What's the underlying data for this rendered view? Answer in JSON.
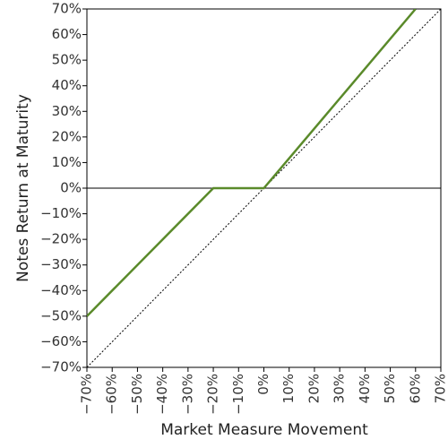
{
  "chart_data": {
    "type": "line",
    "xlabel": "Market Measure Movement",
    "ylabel": "Notes Return at Maturity",
    "series": [
      {
        "color": "#5a8a2a",
        "style": "solid",
        "x": [
          -70,
          -20,
          0,
          60
        ],
        "values": [
          -50,
          0,
          0,
          70
        ]
      },
      {
        "color": "#000000",
        "style": "dotted",
        "x": [
          -70,
          70
        ],
        "values": [
          -70,
          70
        ]
      }
    ],
    "xlim": [
      -70,
      70
    ],
    "ylim": [
      -70,
      70
    ],
    "xticks": [
      {
        "value": -70,
        "label": "−70%"
      },
      {
        "value": -60,
        "label": "−60%"
      },
      {
        "value": -50,
        "label": "−50%"
      },
      {
        "value": -40,
        "label": "−40%"
      },
      {
        "value": -30,
        "label": "−30%"
      },
      {
        "value": -20,
        "label": "−20%"
      },
      {
        "value": -10,
        "label": "−10%"
      },
      {
        "value": 0,
        "label": "0%"
      },
      {
        "value": 10,
        "label": "10%"
      },
      {
        "value": 20,
        "label": "20%"
      },
      {
        "value": 30,
        "label": "30%"
      },
      {
        "value": 40,
        "label": "40%"
      },
      {
        "value": 50,
        "label": "50%"
      },
      {
        "value": 60,
        "label": "60%"
      },
      {
        "value": 70,
        "label": "70%"
      }
    ],
    "yticks": [
      {
        "value": -70,
        "label": "−70%"
      },
      {
        "value": -60,
        "label": "−60%"
      },
      {
        "value": -50,
        "label": "−50%"
      },
      {
        "value": -40,
        "label": "−40%"
      },
      {
        "value": -30,
        "label": "−30%"
      },
      {
        "value": -20,
        "label": "−20%"
      },
      {
        "value": -10,
        "label": "−10%"
      },
      {
        "value": 0,
        "label": "0%"
      },
      {
        "value": 10,
        "label": "10%"
      },
      {
        "value": 20,
        "label": "20%"
      },
      {
        "value": 30,
        "label": "30%"
      },
      {
        "value": 40,
        "label": "40%"
      },
      {
        "value": 50,
        "label": "50%"
      },
      {
        "value": 60,
        "label": "60%"
      },
      {
        "value": 70,
        "label": "70%"
      }
    ],
    "grid": false
  }
}
